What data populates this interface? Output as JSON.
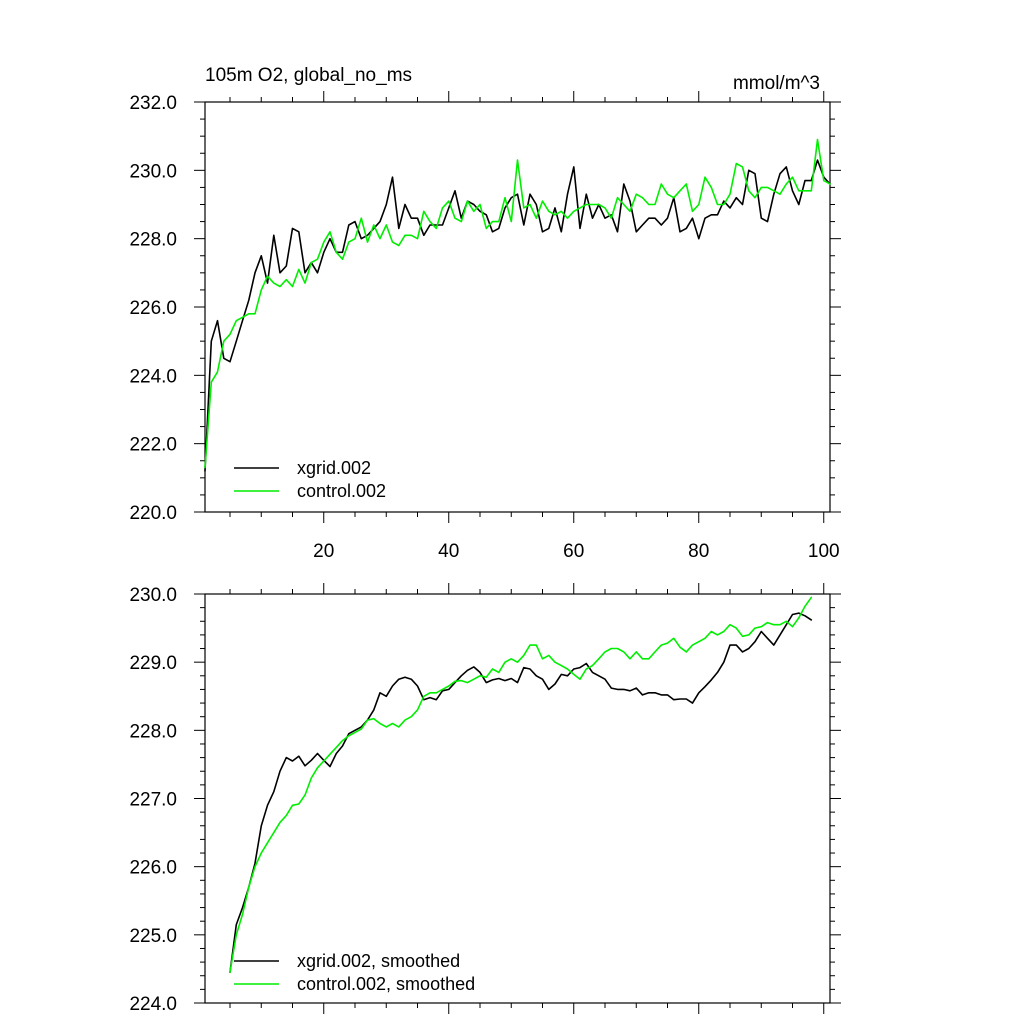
{
  "chart_data": [
    {
      "type": "line",
      "title_left": "105m O2, global_no_ms",
      "title_right": "mmol/m^3",
      "xlabel": "",
      "ylabel": "",
      "xlim": [
        1,
        101
      ],
      "ylim": [
        220,
        232
      ],
      "x_ticks": [
        20,
        40,
        60,
        80,
        100
      ],
      "x_tick_labels": [
        "20",
        "40",
        "60",
        "80",
        "100"
      ],
      "y_ticks": [
        220,
        222,
        224,
        226,
        228,
        230,
        232
      ],
      "y_tick_labels": [
        "220.0",
        "222.0",
        "224.0",
        "226.0",
        "228.0",
        "230.0",
        "232.0"
      ],
      "legend_position": "bottom-left",
      "x": [
        1,
        2,
        3,
        4,
        5,
        6,
        7,
        8,
        9,
        10,
        11,
        12,
        13,
        14,
        15,
        16,
        17,
        18,
        19,
        20,
        21,
        22,
        23,
        24,
        25,
        26,
        27,
        28,
        29,
        30,
        31,
        32,
        33,
        34,
        35,
        36,
        37,
        38,
        39,
        40,
        41,
        42,
        43,
        44,
        45,
        46,
        47,
        48,
        49,
        50,
        51,
        52,
        53,
        54,
        55,
        56,
        57,
        58,
        59,
        60,
        61,
        62,
        63,
        64,
        65,
        66,
        67,
        68,
        69,
        70,
        71,
        72,
        73,
        74,
        75,
        76,
        77,
        78,
        79,
        80,
        81,
        82,
        83,
        84,
        85,
        86,
        87,
        88,
        89,
        90,
        91,
        92,
        93,
        94,
        95,
        96,
        97,
        98,
        99,
        100,
        101
      ],
      "series": [
        {
          "name": "xgrid.002",
          "color": "#000000",
          "values": [
            221.2,
            225.0,
            225.6,
            224.5,
            224.4,
            225.0,
            225.6,
            226.2,
            227.0,
            227.5,
            226.7,
            228.1,
            227.0,
            227.2,
            228.3,
            228.2,
            227.0,
            227.3,
            227.0,
            227.6,
            228.0,
            227.6,
            227.6,
            228.4,
            228.5,
            228.0,
            228.1,
            228.3,
            228.5,
            229.0,
            229.8,
            228.3,
            229.0,
            228.6,
            228.6,
            228.1,
            228.4,
            228.4,
            228.4,
            228.9,
            229.4,
            228.6,
            229.1,
            229.0,
            228.8,
            228.7,
            228.2,
            228.3,
            228.9,
            229.2,
            229.3,
            228.4,
            229.3,
            229.0,
            228.2,
            228.3,
            228.9,
            228.2,
            229.3,
            230.1,
            228.3,
            229.3,
            228.6,
            229.0,
            228.6,
            228.7,
            228.2,
            229.6,
            229.1,
            228.2,
            228.4,
            228.6,
            228.6,
            228.4,
            228.6,
            229.2,
            228.2,
            228.3,
            228.6,
            228.0,
            228.6,
            228.7,
            228.7,
            229.1,
            228.9,
            229.2,
            229.0,
            230.0,
            229.9,
            228.6,
            228.5,
            229.3,
            229.9,
            230.1,
            229.4,
            229.0,
            229.7,
            229.7,
            230.3,
            229.8,
            229.6
          ]
        },
        {
          "name": "control.002",
          "color": "#00ee00",
          "values": [
            221.3,
            223.8,
            224.1,
            225.0,
            225.2,
            225.6,
            225.7,
            225.8,
            225.8,
            226.5,
            226.9,
            226.7,
            226.6,
            226.8,
            226.6,
            227.1,
            226.7,
            227.3,
            227.4,
            227.9,
            228.2,
            227.6,
            227.4,
            227.9,
            228.0,
            228.6,
            227.9,
            228.4,
            228.0,
            228.4,
            227.9,
            227.8,
            228.1,
            228.1,
            228.0,
            228.8,
            228.5,
            228.3,
            228.9,
            229.1,
            228.6,
            228.5,
            229.1,
            228.8,
            229.0,
            228.3,
            228.5,
            228.5,
            229.2,
            228.5,
            230.3,
            228.9,
            229.0,
            228.6,
            229.1,
            228.8,
            228.7,
            228.8,
            228.6,
            228.8,
            228.9,
            229.0,
            229.0,
            229.0,
            228.9,
            228.6,
            229.2,
            229.0,
            228.8,
            229.3,
            229.2,
            229.0,
            229.0,
            229.6,
            229.3,
            229.2,
            229.4,
            229.6,
            228.8,
            229.0,
            229.8,
            229.5,
            229.0,
            229.0,
            229.3,
            230.2,
            230.1,
            229.4,
            229.2,
            229.5,
            229.5,
            229.4,
            229.3,
            229.6,
            229.8,
            229.4,
            229.4,
            229.4,
            230.9,
            229.7,
            229.6
          ]
        }
      ]
    },
    {
      "type": "line",
      "xlabel": "",
      "ylabel": "",
      "xlim": [
        1,
        101
      ],
      "ylim": [
        224,
        230
      ],
      "x_ticks": [
        20,
        40,
        60,
        80,
        100
      ],
      "x_tick_labels": [],
      "y_ticks": [
        224,
        225,
        226,
        227,
        228,
        229,
        230
      ],
      "y_tick_labels": [
        "224.0",
        "225.0",
        "226.0",
        "227.0",
        "228.0",
        "229.0",
        "230.0"
      ],
      "legend_position": "bottom-left",
      "x": [
        5,
        6,
        7,
        8,
        9,
        10,
        11,
        12,
        13,
        14,
        15,
        16,
        17,
        18,
        19,
        20,
        21,
        22,
        23,
        24,
        25,
        26,
        27,
        28,
        29,
        30,
        31,
        32,
        33,
        34,
        35,
        36,
        37,
        38,
        39,
        40,
        41,
        42,
        43,
        44,
        45,
        46,
        47,
        48,
        49,
        50,
        51,
        52,
        53,
        54,
        55,
        56,
        57,
        58,
        59,
        60,
        61,
        62,
        63,
        64,
        65,
        66,
        67,
        68,
        69,
        70,
        71,
        72,
        73,
        74,
        75,
        76,
        77,
        78,
        79,
        80,
        81,
        82,
        83,
        84,
        85,
        86,
        87,
        88,
        89,
        90,
        91,
        92,
        93,
        94,
        95,
        96,
        97,
        98
      ],
      "series": [
        {
          "name": "xgrid.002, smoothed",
          "color": "#000000",
          "values": [
            224.45,
            225.15,
            225.4,
            225.7,
            226.05,
            226.6,
            226.9,
            227.1,
            227.4,
            227.6,
            227.55,
            227.62,
            227.48,
            227.56,
            227.66,
            227.56,
            227.47,
            227.66,
            227.77,
            227.95,
            228.0,
            228.05,
            228.15,
            228.3,
            228.55,
            228.5,
            228.65,
            228.75,
            228.78,
            228.75,
            228.65,
            228.45,
            228.48,
            228.45,
            228.58,
            228.6,
            228.7,
            228.8,
            228.88,
            228.93,
            228.85,
            228.7,
            228.74,
            228.76,
            228.73,
            228.76,
            228.7,
            228.92,
            228.9,
            228.8,
            228.75,
            228.6,
            228.68,
            228.82,
            228.8,
            228.9,
            228.92,
            228.98,
            228.85,
            228.8,
            228.75,
            228.62,
            228.6,
            228.6,
            228.58,
            228.62,
            228.52,
            228.55,
            228.55,
            228.52,
            228.52,
            228.45,
            228.46,
            228.46,
            228.4,
            228.55,
            228.64,
            228.74,
            228.85,
            229.0,
            229.25,
            229.25,
            229.15,
            229.2,
            229.3,
            229.45,
            229.35,
            229.25,
            229.4,
            229.55,
            229.7,
            229.72,
            229.68,
            229.62
          ]
        },
        {
          "name": "control.002, smoothed",
          "color": "#00ee00",
          "values": [
            224.45,
            225.0,
            225.3,
            225.7,
            226.0,
            226.2,
            226.35,
            226.5,
            226.65,
            226.75,
            226.9,
            226.92,
            227.05,
            227.3,
            227.45,
            227.55,
            227.65,
            227.75,
            227.85,
            227.92,
            227.97,
            228.02,
            228.15,
            228.17,
            228.1,
            228.05,
            228.1,
            228.05,
            228.15,
            228.2,
            228.3,
            228.5,
            228.55,
            228.55,
            228.6,
            228.65,
            228.72,
            228.73,
            228.7,
            228.75,
            228.8,
            228.78,
            228.9,
            228.85,
            229.0,
            229.05,
            229.0,
            229.1,
            229.25,
            229.25,
            229.05,
            229.1,
            229.0,
            228.95,
            228.9,
            228.82,
            228.75,
            228.9,
            228.95,
            229.05,
            229.15,
            229.2,
            229.2,
            229.15,
            229.05,
            229.15,
            229.05,
            229.05,
            229.15,
            229.25,
            229.28,
            229.35,
            229.22,
            229.15,
            229.25,
            229.3,
            229.35,
            229.45,
            229.4,
            229.45,
            229.55,
            229.5,
            229.38,
            229.4,
            229.5,
            229.52,
            229.58,
            229.55,
            229.55,
            229.6,
            229.52,
            229.65,
            229.82,
            229.95
          ]
        }
      ]
    }
  ]
}
